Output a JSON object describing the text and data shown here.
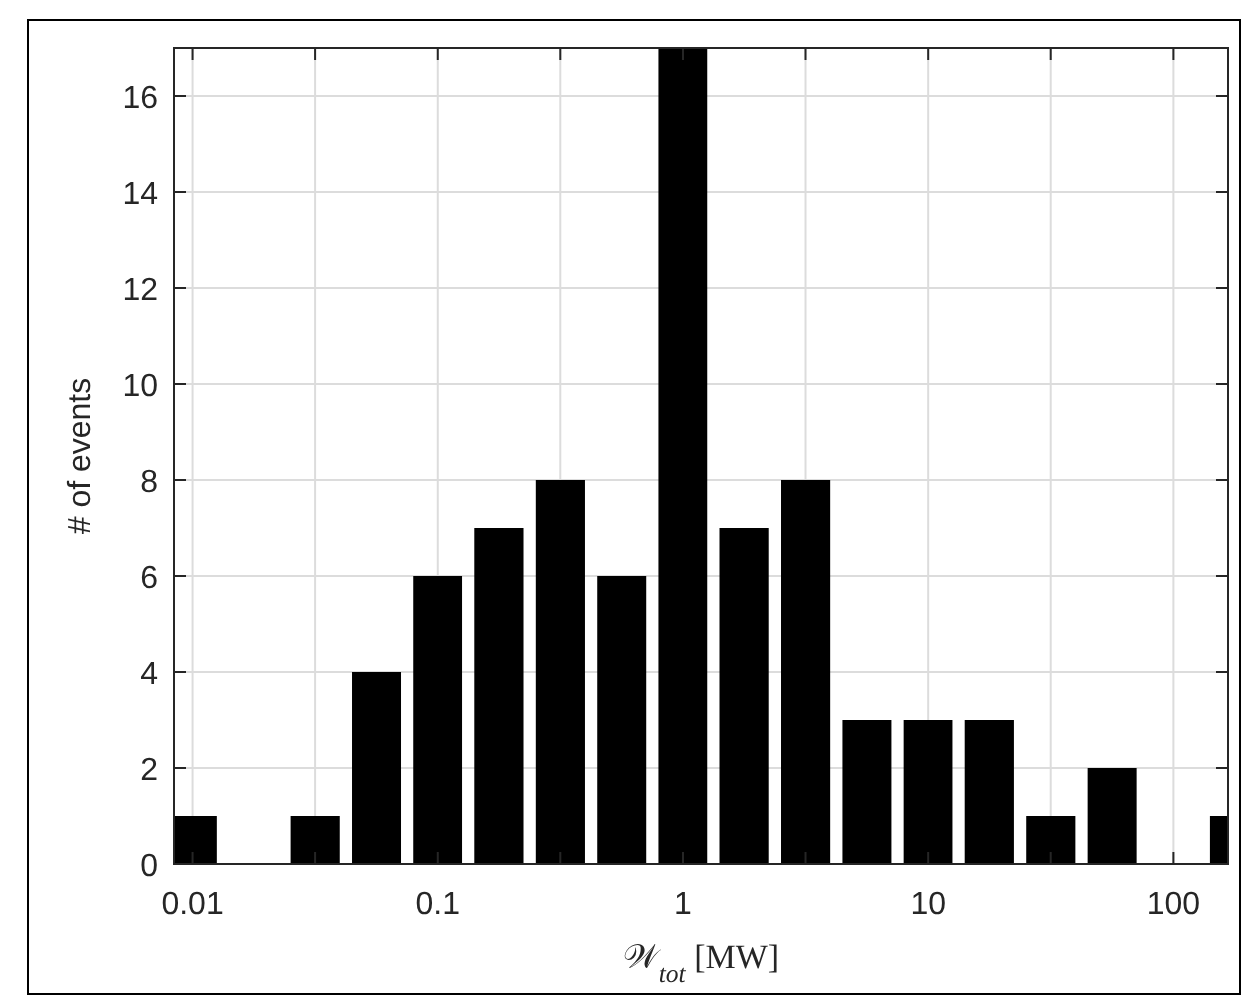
{
  "chart_data": {
    "type": "histogram",
    "xlabel": "𝒲$_{tot}$ [MW]",
    "ylabel": "# of events",
    "bins": [
      0.0075,
      0.0133,
      0.0237,
      0.0422,
      0.075,
      0.133,
      0.237,
      0.422,
      0.75,
      1.33,
      2.37,
      4.22,
      7.5,
      13.3,
      23.7,
      42.2,
      75,
      133,
      237
    ],
    "values": [
      1,
      0,
      1,
      4,
      6,
      7,
      8,
      6,
      17,
      7,
      8,
      3,
      3,
      3,
      1,
      2,
      0,
      1
    ],
    "color": "#000000",
    "log": "x",
    "grid": true,
    "xlim": [
      0.0084,
      167
    ],
    "xticks": [
      0.01,
      {
        "value": 0.0316,
        "label": null
      },
      0.1,
      {
        "value": 0.316,
        "label": null
      },
      1,
      {
        "value": 3.16,
        "label": null
      },
      10,
      {
        "value": 31.6,
        "label": null
      },
      100
    ],
    "ylim": [
      0,
      17
    ],
    "yticks": [
      0,
      2,
      4,
      6,
      8,
      10,
      12,
      14,
      16
    ]
  }
}
